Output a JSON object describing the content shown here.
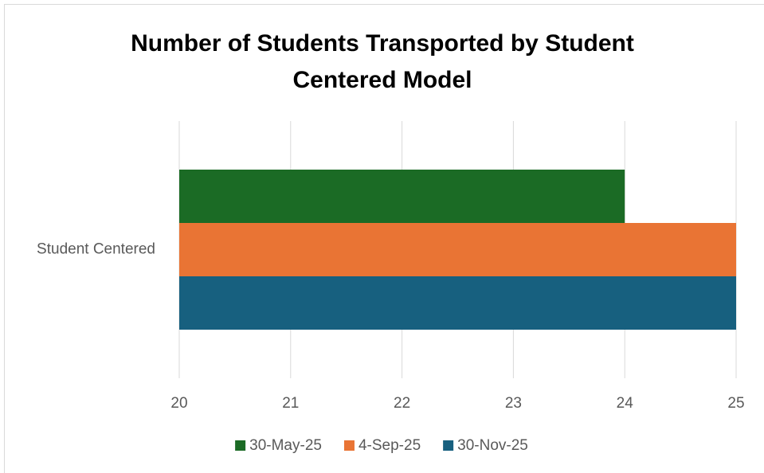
{
  "chart_data": {
    "type": "bar",
    "orientation": "horizontal",
    "title": "Number of Students Transported by Student Centered Model",
    "categories": [
      "Student Centered"
    ],
    "series": [
      {
        "name": "30-May-25",
        "color": "#1b6b25",
        "values": [
          24
        ]
      },
      {
        "name": "4-Sep-25",
        "color": "#e97434",
        "values": [
          25
        ]
      },
      {
        "name": "30-Nov-25",
        "color": "#17607f",
        "values": [
          25
        ]
      }
    ],
    "xlim": [
      20,
      25
    ],
    "xticks": [
      20,
      21,
      22,
      23,
      24,
      25
    ],
    "grid": true,
    "legend": "bottom"
  }
}
